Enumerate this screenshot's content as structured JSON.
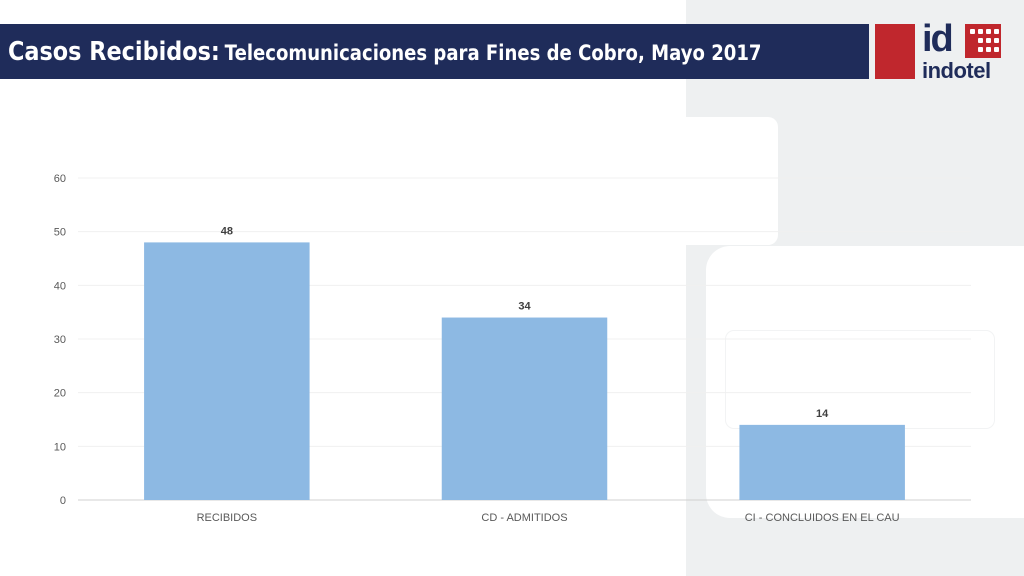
{
  "header": {
    "title_main": "Casos Recibidos:",
    "title_sub": "Telecomunicaciones para Fines de Cobro, Mayo 2017"
  },
  "logo": {
    "mark": "id",
    "name": "indotel",
    "colors": {
      "red": "#c0272d",
      "navy": "#1f2c5a"
    }
  },
  "chart_data": {
    "type": "bar",
    "title": "",
    "xlabel": "",
    "ylabel": "",
    "categories": [
      "RECIBIDOS",
      "CD - ADMITIDOS",
      "CI - CONCLUIDOS EN EL CAU"
    ],
    "values": [
      48,
      34,
      14
    ],
    "ylim": [
      0,
      60
    ],
    "yticks": [
      "0",
      "10",
      "20",
      "30",
      "40",
      "50",
      "60"
    ],
    "data_labels": [
      "48",
      "34",
      "14"
    ],
    "bar_color": "#8db9e3",
    "grid": true,
    "legend": "none"
  }
}
